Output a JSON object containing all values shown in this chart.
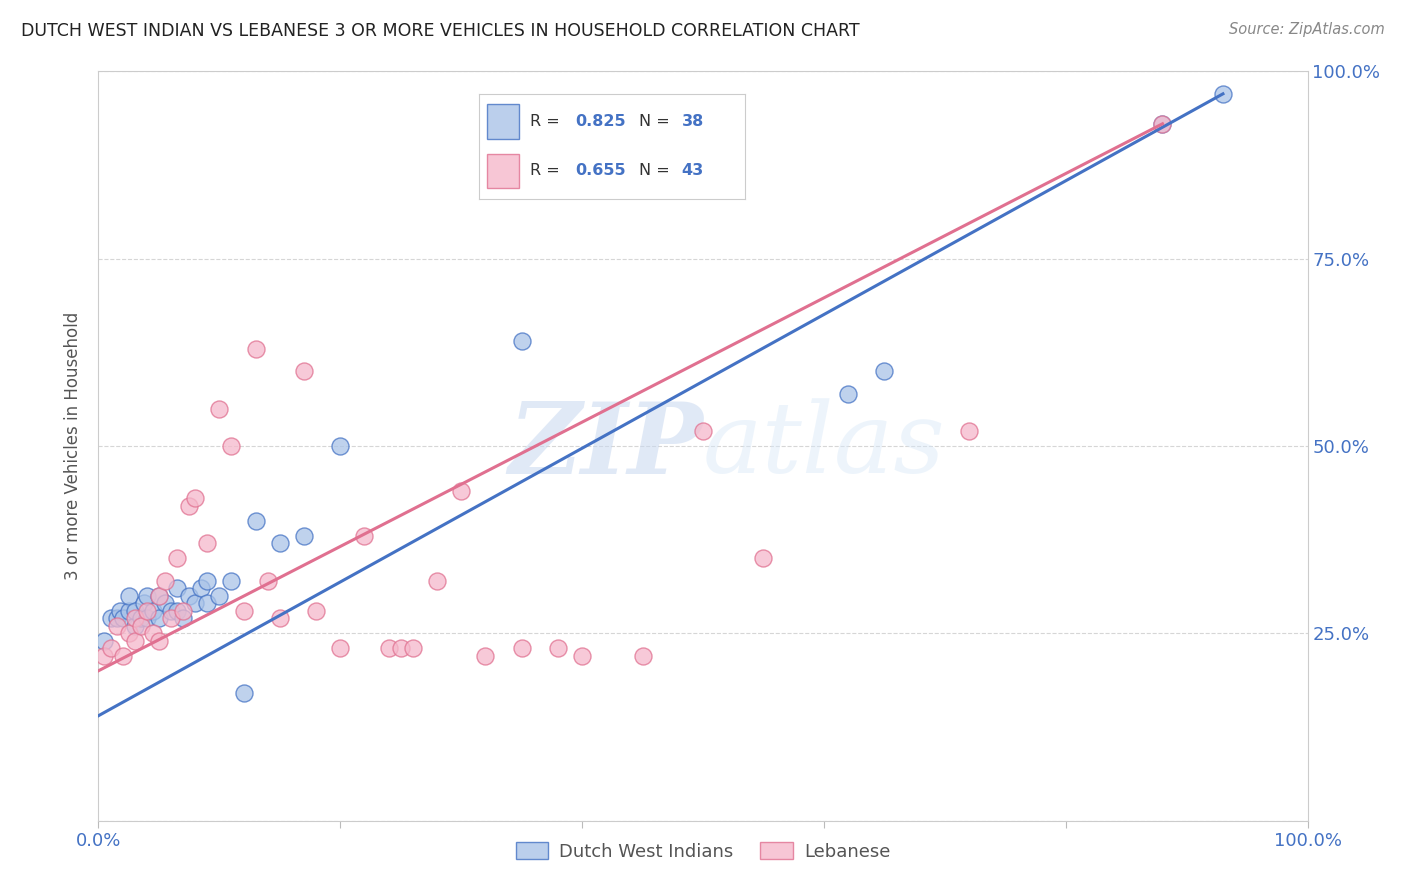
{
  "title": "DUTCH WEST INDIAN VS LEBANESE 3 OR MORE VEHICLES IN HOUSEHOLD CORRELATION CHART",
  "source": "Source: ZipAtlas.com",
  "ylabel": "3 or more Vehicles in Household",
  "legend_blue_r": "R = 0.825",
  "legend_blue_n": "N = 38",
  "legend_pink_r": "R = 0.655",
  "legend_pink_n": "N = 43",
  "legend_label_blue": "Dutch West Indians",
  "legend_label_pink": "Lebanese",
  "watermark_zip": "ZIP",
  "watermark_atlas": "atlas",
  "background_color": "#ffffff",
  "blue_color": "#aac4e8",
  "pink_color": "#f5b8cb",
  "blue_line_color": "#4472c4",
  "pink_line_color": "#e07090",
  "axis_label_color": "#4472c4",
  "title_color": "#222222",
  "grid_color": "#cccccc",
  "blue_scatter_x": [
    0.005,
    0.01,
    0.015,
    0.018,
    0.02,
    0.025,
    0.025,
    0.03,
    0.03,
    0.035,
    0.038,
    0.04,
    0.04,
    0.045,
    0.05,
    0.05,
    0.055,
    0.06,
    0.065,
    0.065,
    0.07,
    0.075,
    0.08,
    0.085,
    0.09,
    0.09,
    0.1,
    0.11,
    0.12,
    0.13,
    0.15,
    0.17,
    0.2,
    0.35,
    0.62,
    0.65,
    0.88,
    0.93
  ],
  "blue_scatter_y": [
    0.24,
    0.27,
    0.27,
    0.28,
    0.27,
    0.28,
    0.3,
    0.26,
    0.28,
    0.27,
    0.29,
    0.27,
    0.3,
    0.28,
    0.27,
    0.3,
    0.29,
    0.28,
    0.28,
    0.31,
    0.27,
    0.3,
    0.29,
    0.31,
    0.29,
    0.32,
    0.3,
    0.32,
    0.17,
    0.4,
    0.37,
    0.38,
    0.5,
    0.64,
    0.57,
    0.6,
    0.93,
    0.97
  ],
  "pink_scatter_x": [
    0.005,
    0.01,
    0.015,
    0.02,
    0.025,
    0.03,
    0.03,
    0.035,
    0.04,
    0.045,
    0.05,
    0.05,
    0.055,
    0.06,
    0.065,
    0.07,
    0.075,
    0.08,
    0.09,
    0.1,
    0.11,
    0.12,
    0.13,
    0.14,
    0.15,
    0.17,
    0.18,
    0.2,
    0.22,
    0.24,
    0.25,
    0.26,
    0.28,
    0.3,
    0.32,
    0.35,
    0.38,
    0.4,
    0.45,
    0.5,
    0.55,
    0.72,
    0.88
  ],
  "pink_scatter_y": [
    0.22,
    0.23,
    0.26,
    0.22,
    0.25,
    0.24,
    0.27,
    0.26,
    0.28,
    0.25,
    0.24,
    0.3,
    0.32,
    0.27,
    0.35,
    0.28,
    0.42,
    0.43,
    0.37,
    0.55,
    0.5,
    0.28,
    0.63,
    0.32,
    0.27,
    0.6,
    0.28,
    0.23,
    0.38,
    0.23,
    0.23,
    0.23,
    0.32,
    0.44,
    0.22,
    0.23,
    0.23,
    0.22,
    0.22,
    0.52,
    0.35,
    0.52,
    0.93
  ],
  "xlim": [
    0.0,
    1.0
  ],
  "ylim": [
    0.0,
    1.0
  ],
  "xticks": [
    0.0,
    0.2,
    0.4,
    0.6,
    0.8,
    1.0
  ],
  "yticks": [
    0.0,
    0.25,
    0.5,
    0.75,
    1.0
  ],
  "blue_line_x0": 0.0,
  "blue_line_y0": 0.14,
  "blue_line_x1": 0.93,
  "blue_line_y1": 0.97,
  "pink_line_x0": 0.0,
  "pink_line_y0": 0.2,
  "pink_line_x1": 0.88,
  "pink_line_y1": 0.93
}
